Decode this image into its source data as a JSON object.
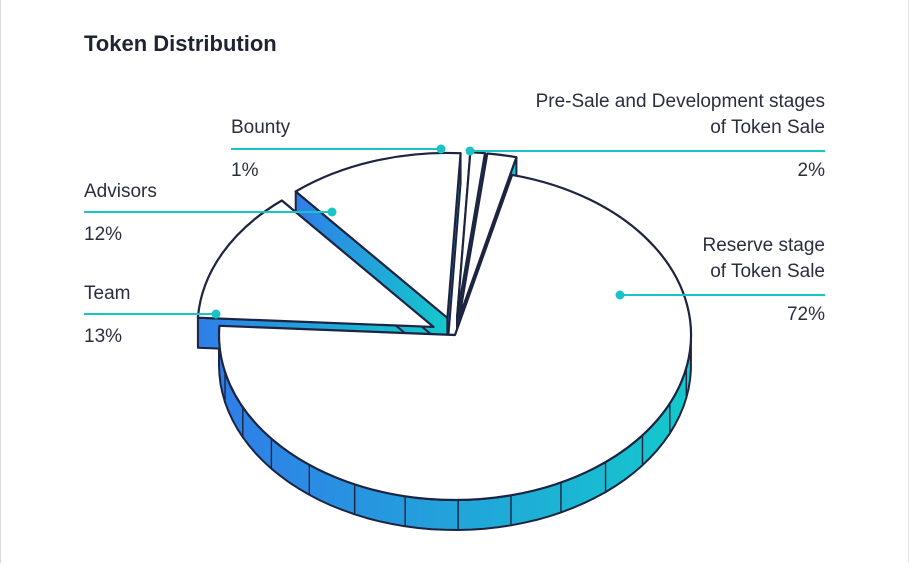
{
  "colors": {
    "outline": "#1d2440",
    "leader": "#19c3c8",
    "gradient_start": "#2f7ee8",
    "gradient_end": "#14c9cc",
    "face": "#ffffff"
  },
  "chart_data": {
    "type": "pie",
    "title": "Token Distribution",
    "style": "3d-exploded",
    "slices": [
      {
        "name": "Reserve stage of Token Sale",
        "name_lines": [
          "Reserve stage",
          "of Token Sale"
        ],
        "value": 72,
        "label": "72%"
      },
      {
        "name": "Team",
        "name_lines": [
          "Team"
        ],
        "value": 13,
        "label": "13%"
      },
      {
        "name": "Advisors",
        "name_lines": [
          "Advisors"
        ],
        "value": 12,
        "label": "12%"
      },
      {
        "name": "Bounty",
        "name_lines": [
          "Bounty"
        ],
        "value": 1,
        "label": "1%"
      },
      {
        "name": "Pre-Sale and Development stages of Token Sale",
        "name_lines": [
          "Pre-Sale and Development stages",
          "of Token Sale"
        ],
        "value": 2,
        "label": "2%"
      }
    ]
  }
}
